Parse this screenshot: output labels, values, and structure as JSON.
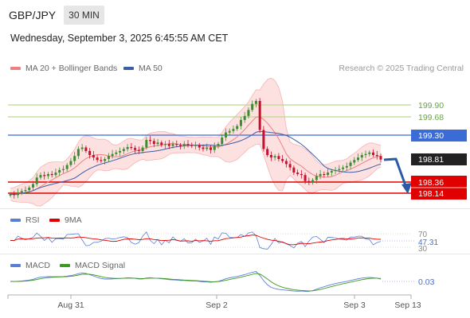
{
  "header": {
    "symbol": "GBP/JPY",
    "timeframe": "30 MIN",
    "datetime": "Wednesday, September 3, 2025 6:45:55 AM CET"
  },
  "legend": {
    "ma20_label": "MA 20 + Bollinger Bands",
    "ma50_label": "MA 50",
    "research": "Research © 2025 Trading Central",
    "rsi_label": "RSI",
    "rsi_ma_label": "9MA",
    "macd_label": "MACD",
    "macd_signal_label": "MACD Signal"
  },
  "colors": {
    "resistance_green": "#b7dc8c",
    "pivot_blue": "#3b6bd6",
    "support_red": "#e00000",
    "current_dark": "#222222",
    "ma20": "#f08080",
    "ma50": "#3a5da8",
    "bands_fill": "#fde0e0",
    "candle_up": "#3d8c2f",
    "candle_down": "#c8102e",
    "forecast_arrow": "#2a5aa8"
  },
  "price_levels": {
    "r2": "199.90",
    "r1": "199.68",
    "pivot": "199.30",
    "current": "198.81",
    "s1": "198.36",
    "s2": "198.14"
  },
  "rsi": {
    "upper": "70",
    "value": "47.31",
    "lower": "30"
  },
  "macd": {
    "value": "0.03"
  },
  "x_axis": {
    "labels": [
      "Aug 31",
      "Sep 2",
      "Sep 3",
      "Sep 13"
    ]
  },
  "chart_data": {
    "type": "candlestick",
    "symbol": "GBP/JPY",
    "price_axis_labels": [
      199.9,
      199.68,
      199.3,
      198.81,
      198.36,
      198.14
    ],
    "close_series_approx": [
      198.12,
      198.1,
      198.15,
      198.18,
      198.2,
      198.25,
      198.32,
      198.45,
      198.5,
      198.48,
      198.52,
      198.5,
      198.55,
      198.6,
      198.62,
      198.7,
      198.78,
      198.88,
      199.02,
      199.05,
      198.98,
      198.9,
      198.85,
      198.8,
      198.78,
      198.82,
      198.88,
      198.92,
      198.95,
      198.98,
      199.02,
      199.06,
      199.04,
      199.0,
      198.98,
      199.05,
      199.2,
      199.18,
      199.12,
      199.15,
      199.1,
      199.12,
      199.08,
      199.12,
      199.1,
      199.08,
      199.12,
      199.1,
      199.08,
      199.1,
      199.05,
      199.02,
      199.05,
      199.0,
      199.08,
      199.12,
      199.25,
      199.35,
      199.38,
      199.42,
      199.48,
      199.6,
      199.68,
      199.8,
      199.92,
      199.98,
      199.4,
      199.02,
      198.9,
      198.85,
      198.88,
      198.82,
      198.78,
      198.72,
      198.65,
      198.55,
      198.52,
      198.5,
      198.38,
      198.35,
      198.4,
      198.48,
      198.52,
      198.5,
      198.55,
      198.58,
      198.6,
      198.62,
      198.65,
      198.68,
      198.75,
      198.8,
      198.85,
      198.9,
      198.92,
      198.95,
      198.9,
      198.88,
      198.81
    ],
    "forecast_path": [
      198.81,
      198.78,
      198.14
    ],
    "rsi_current": 47.31,
    "rsi_levels": [
      70,
      30
    ],
    "macd_current": 0.03
  }
}
